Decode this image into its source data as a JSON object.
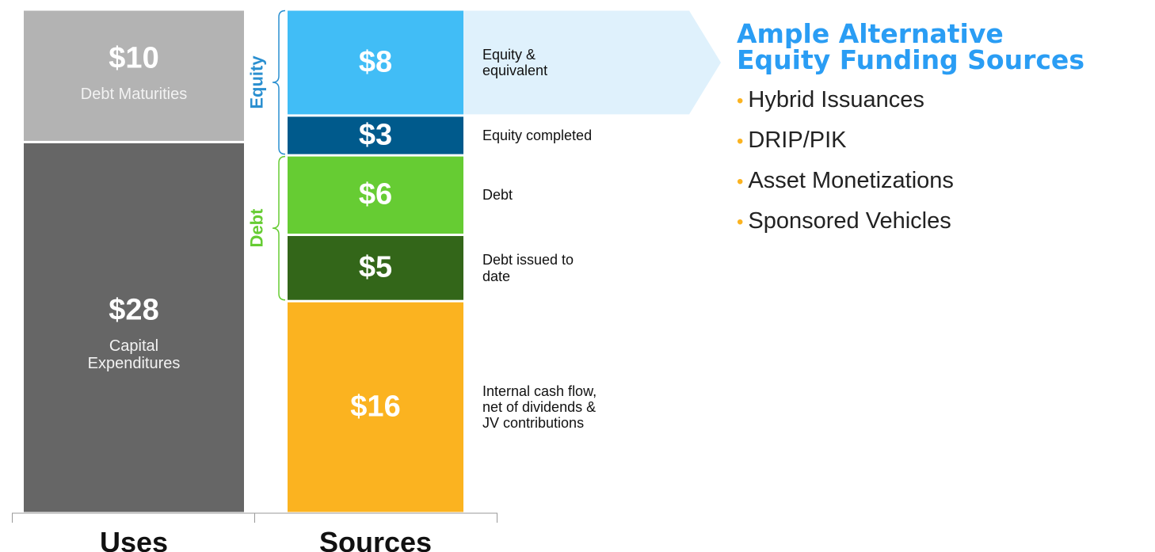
{
  "chart_data": {
    "type": "stacked_bar",
    "categories": [
      "Uses",
      "Sources"
    ],
    "stacks": [
      {
        "label_position": "inside",
        "segments": [
          {
            "name": "Capital\nExpenditures",
            "value": 28,
            "value_label": "$28",
            "color": "#666666"
          },
          {
            "name": "Debt Maturities",
            "value": 10,
            "value_label": "$10",
            "color": "#b3b3b3"
          }
        ]
      },
      {
        "label_position": "right",
        "segments": [
          {
            "name": "Internal cash flow,\nnet of dividends &\nJV contributions",
            "value": 16,
            "value_label": "$16",
            "color": "#fbb320"
          },
          {
            "label": "Debt",
            "color": "#66cc33",
            "segments": [
              {
                "name": "Debt issued to\ndate",
                "value": 5,
                "value_label": "$5",
                "color": "#336619"
              },
              {
                "name": "Debt",
                "value": 6,
                "value_label": "$6",
                "color": "#66cc33"
              }
            ]
          },
          {
            "label": "Equity",
            "color": "#2a8fd0",
            "segments": [
              {
                "name": "Equity completed",
                "value": 3,
                "value_label": "$3",
                "color": "#005a8c"
              },
              {
                "name": "Equity &\nequivalent",
                "value": 8,
                "value_label": "$8",
                "color": "#41bdf6",
                "highlight": true
              }
            ]
          }
        ]
      }
    ],
    "panel": {
      "title": "Ample Alternative\nEquity Funding Sources",
      "title_color": "#2a9df4",
      "bullet_color": "#fbb320",
      "items": [
        "Hybrid Issuances",
        "DRIP/PIK",
        "Asset Monetizations",
        "Sponsored Vehicles"
      ]
    }
  }
}
